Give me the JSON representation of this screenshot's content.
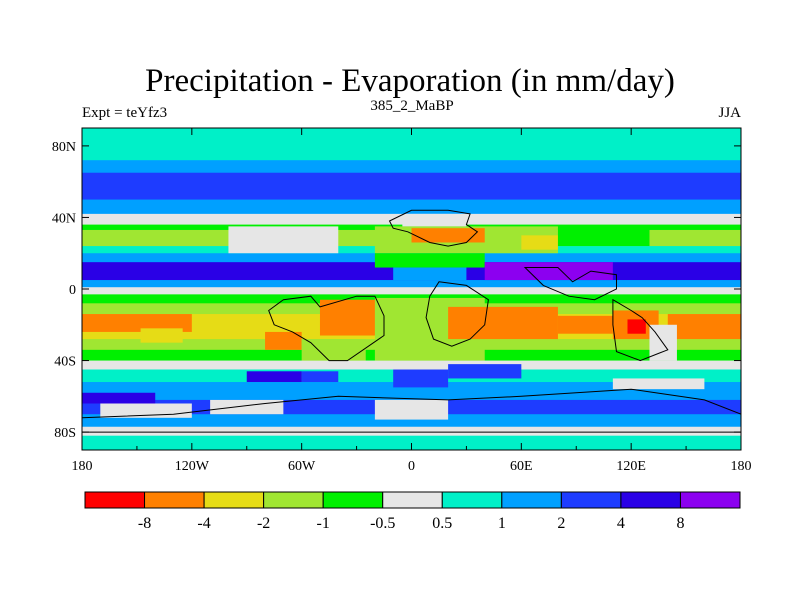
{
  "chart_data": {
    "type": "heatmap",
    "title": "Precipitation - Evaporation (in mm/day)",
    "left_label": "Expt = teYfz3",
    "center_label": "385_2_MaBP",
    "right_label": "JJA",
    "x_range": [
      -180,
      180
    ],
    "y_range": [
      -90,
      90
    ],
    "x_ticks": [
      {
        "value": -180,
        "label": "180"
      },
      {
        "value": -120,
        "label": "120W"
      },
      {
        "value": -60,
        "label": "60W"
      },
      {
        "value": 0,
        "label": "0"
      },
      {
        "value": 60,
        "label": "60E"
      },
      {
        "value": 120,
        "label": "120E"
      },
      {
        "value": 180,
        "label": "180"
      }
    ],
    "y_ticks": [
      {
        "value": 80,
        "label": "80N"
      },
      {
        "value": 40,
        "label": "40N"
      },
      {
        "value": 0,
        "label": "0"
      },
      {
        "value": -40,
        "label": "40S"
      },
      {
        "value": -80,
        "label": "80S"
      }
    ],
    "colorbar": {
      "colors": [
        "#ff0000",
        "#ff8000",
        "#e6dc16",
        "#a0e632",
        "#00f000",
        "#e6e6e6",
        "#00f0c8",
        "#00a0ff",
        "#1e3cff",
        "#2a00e6",
        "#8c00f0"
      ],
      "labels": [
        "-8",
        "-4",
        "-2",
        "-1",
        "-0.5",
        "0.5",
        "1",
        "2",
        "4",
        "8"
      ]
    },
    "zonal_bands": [
      {
        "lat": [
          72,
          90
        ],
        "class": 6
      },
      {
        "lat": [
          65,
          72
        ],
        "class": 7
      },
      {
        "lat": [
          50,
          65
        ],
        "class": 8
      },
      {
        "lat": [
          42,
          50
        ],
        "class": 7
      },
      {
        "lat": [
          36,
          42
        ],
        "class": 5
      },
      {
        "lat": [
          33,
          36
        ],
        "class": 4
      },
      {
        "lat": [
          24,
          33
        ],
        "class": 3
      },
      {
        "lat": [
          20,
          24
        ],
        "class": 6
      },
      {
        "lat": [
          15,
          20
        ],
        "class": 7
      },
      {
        "lat": [
          5,
          15
        ],
        "class": 9
      },
      {
        "lat": [
          1,
          5
        ],
        "class": 7
      },
      {
        "lat": [
          -3,
          1
        ],
        "class": 5
      },
      {
        "lat": [
          -8,
          -3
        ],
        "class": 4
      },
      {
        "lat": [
          -14,
          -8
        ],
        "class": 3
      },
      {
        "lat": [
          -28,
          -14
        ],
        "class": 2
      },
      {
        "lat": [
          -34,
          -28
        ],
        "class": 3
      },
      {
        "lat": [
          -40,
          -34
        ],
        "class": 4
      },
      {
        "lat": [
          -45,
          -40
        ],
        "class": 5
      },
      {
        "lat": [
          -52,
          -45
        ],
        "class": 6
      },
      {
        "lat": [
          -62,
          -52
        ],
        "class": 7
      },
      {
        "lat": [
          -70,
          -62
        ],
        "class": 8
      },
      {
        "lat": [
          -77,
          -70
        ],
        "class": 7
      },
      {
        "lat": [
          -82,
          -77
        ],
        "class": 5
      },
      {
        "lat": [
          -90,
          -82
        ],
        "class": 6
      }
    ],
    "regions": [
      {
        "lon": [
          -180,
          -120
        ],
        "lat": [
          -24,
          -14
        ],
        "class": 1
      },
      {
        "lon": [
          -148,
          -125
        ],
        "lat": [
          -30,
          -22
        ],
        "class": 2
      },
      {
        "lon": [
          -50,
          -15
        ],
        "lat": [
          -26,
          -6
        ],
        "class": 1
      },
      {
        "lon": [
          -80,
          -60
        ],
        "lat": [
          -34,
          -24
        ],
        "class": 1
      },
      {
        "lon": [
          -60,
          -25
        ],
        "lat": [
          -40,
          -28
        ],
        "class": 3
      },
      {
        "lon": [
          -20,
          40
        ],
        "lat": [
          -40,
          -5
        ],
        "class": 3
      },
      {
        "lon": [
          20,
          80
        ],
        "lat": [
          -28,
          -10
        ],
        "class": 1
      },
      {
        "lon": [
          80,
          110
        ],
        "lat": [
          -25,
          -15
        ],
        "class": 1
      },
      {
        "lon": [
          110,
          135
        ],
        "lat": [
          -28,
          -12
        ],
        "class": 1
      },
      {
        "lon": [
          118,
          128
        ],
        "lat": [
          -25,
          -17
        ],
        "class": 0
      },
      {
        "lon": [
          140,
          180
        ],
        "lat": [
          -28,
          -14
        ],
        "class": 1
      },
      {
        "lon": [
          130,
          145
        ],
        "lat": [
          -40,
          -20
        ],
        "class": 5
      },
      {
        "lon": [
          -100,
          -40
        ],
        "lat": [
          20,
          35
        ],
        "class": 5
      },
      {
        "lon": [
          -20,
          80
        ],
        "lat": [
          20,
          35
        ],
        "class": 3
      },
      {
        "lon": [
          0,
          40
        ],
        "lat": [
          26,
          34
        ],
        "class": 1
      },
      {
        "lon": [
          60,
          80
        ],
        "lat": [
          22,
          30
        ],
        "class": 2
      },
      {
        "lon": [
          -5,
          30
        ],
        "lat": [
          35,
          42
        ],
        "class": 5
      },
      {
        "lon": [
          80,
          130
        ],
        "lat": [
          24,
          34
        ],
        "class": 4
      },
      {
        "lon": [
          -20,
          40
        ],
        "lat": [
          12,
          20
        ],
        "class": 4
      },
      {
        "lon": [
          -10,
          30
        ],
        "lat": [
          5,
          12
        ],
        "class": 7
      },
      {
        "lon": [
          40,
          110
        ],
        "lat": [
          5,
          15
        ],
        "class": 10
      },
      {
        "lon": [
          20,
          60
        ],
        "lat": [
          -50,
          -42
        ],
        "class": 8
      },
      {
        "lon": [
          -10,
          20
        ],
        "lat": [
          -55,
          -45
        ],
        "class": 8
      },
      {
        "lon": [
          -60,
          -40
        ],
        "lat": [
          -52,
          -46
        ],
        "class": 8
      },
      {
        "lon": [
          110,
          160
        ],
        "lat": [
          -56,
          -50
        ],
        "class": 5
      },
      {
        "lon": [
          -170,
          -120
        ],
        "lat": [
          -72,
          -64
        ],
        "class": 5
      },
      {
        "lon": [
          -110,
          -70
        ],
        "lat": [
          -70,
          -62
        ],
        "class": 5
      },
      {
        "lon": [
          -20,
          20
        ],
        "lat": [
          -73,
          -62
        ],
        "class": 5
      },
      {
        "lon": [
          -180,
          -140
        ],
        "lat": [
          -64,
          -58
        ],
        "class": 9
      },
      {
        "lon": [
          -90,
          -60
        ],
        "lat": [
          -52,
          -46
        ],
        "class": 9
      }
    ],
    "land_outlines": [
      [
        [
          -50,
          -10
        ],
        [
          -30,
          -4
        ],
        [
          -20,
          -4
        ],
        [
          -15,
          -15
        ],
        [
          -15,
          -26
        ],
        [
          -35,
          -40
        ],
        [
          -45,
          -40
        ],
        [
          -55,
          -30
        ],
        [
          -65,
          -24
        ],
        [
          -75,
          -20
        ],
        [
          -78,
          -12
        ],
        [
          -70,
          -6
        ],
        [
          -55,
          -4
        ]
      ],
      [
        [
          -12,
          38
        ],
        [
          0,
          44
        ],
        [
          20,
          44
        ],
        [
          32,
          42
        ],
        [
          30,
          36
        ],
        [
          36,
          32
        ],
        [
          30,
          26
        ],
        [
          20,
          24
        ],
        [
          10,
          26
        ],
        [
          -2,
          32
        ],
        [
          -10,
          34
        ]
      ],
      [
        [
          15,
          4
        ],
        [
          30,
          2
        ],
        [
          42,
          -6
        ],
        [
          40,
          -20
        ],
        [
          32,
          -28
        ],
        [
          22,
          -32
        ],
        [
          12,
          -28
        ],
        [
          8,
          -16
        ],
        [
          10,
          -4
        ]
      ],
      [
        [
          62,
          12
        ],
        [
          80,
          12
        ],
        [
          88,
          4
        ],
        [
          98,
          10
        ],
        [
          112,
          8
        ],
        [
          112,
          0
        ],
        [
          100,
          -6
        ],
        [
          86,
          -4
        ],
        [
          72,
          2
        ]
      ],
      [
        [
          110,
          -6
        ],
        [
          120,
          -12
        ],
        [
          126,
          -16
        ],
        [
          133,
          -24
        ],
        [
          140,
          -34
        ],
        [
          135,
          -36
        ],
        [
          125,
          -40
        ],
        [
          112,
          -35
        ],
        [
          110,
          -20
        ]
      ],
      [
        [
          -80,
          -64
        ],
        [
          -40,
          -60
        ],
        [
          20,
          -62
        ],
        [
          60,
          -60
        ],
        [
          120,
          -56
        ],
        [
          160,
          -62
        ],
        [
          180,
          -70
        ],
        [
          180,
          -80
        ],
        [
          -180,
          -80
        ],
        [
          -180,
          -72
        ],
        [
          -130,
          -70
        ]
      ]
    ]
  }
}
